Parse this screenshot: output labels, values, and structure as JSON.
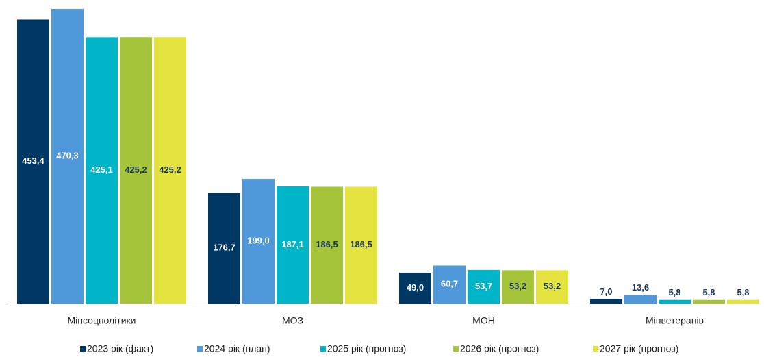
{
  "chart_data": {
    "type": "bar",
    "categories": [
      "Мінсоцполітики",
      "МОЗ",
      "МОН",
      "Мінветеранів"
    ],
    "series": [
      {
        "name": "2023 рік (факт)",
        "color": "#003865",
        "values": [
          453.4,
          176.7,
          49.0,
          7.0
        ],
        "value_labels": [
          "453,4",
          "176,7",
          "49,0",
          "7,0"
        ]
      },
      {
        "name": "2024 рік (план)",
        "color": "#4f98d9",
        "values": [
          470.3,
          199.0,
          60.7,
          13.6
        ],
        "value_labels": [
          "470,3",
          "199,0",
          "60,7",
          "13,6"
        ]
      },
      {
        "name": "2025 рік (прогноз)",
        "color": "#00b5c8",
        "values": [
          425.1,
          187.1,
          53.7,
          5.8
        ],
        "value_labels": [
          "425,1",
          "187,1",
          "53,7",
          "5,8"
        ]
      },
      {
        "name": "2026 рік (прогноз)",
        "color": "#a5c43a",
        "values": [
          425.2,
          186.5,
          53.2,
          5.8
        ],
        "value_labels": [
          "425,2",
          "186,5",
          "53,2",
          "5,8"
        ]
      },
      {
        "name": "2027 рік (прогноз)",
        "color": "#e4e33f",
        "values": [
          425.2,
          186.5,
          53.2,
          5.8
        ],
        "value_labels": [
          "425,2",
          "186,5",
          "53,2",
          "5,8"
        ]
      }
    ]
  }
}
